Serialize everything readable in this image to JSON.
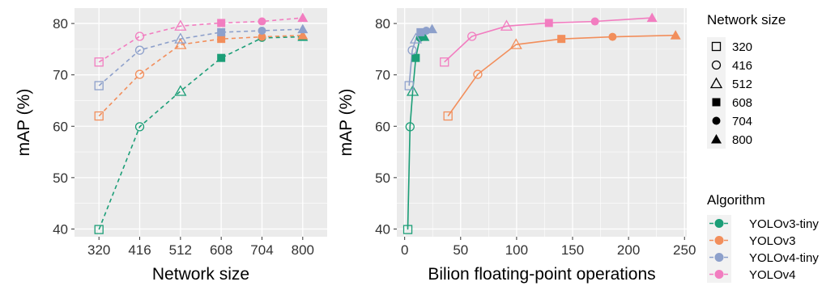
{
  "colors": {
    "panel_bg": "#EBEBEB",
    "grid": "#FFFFFF",
    "legend_key_bg": "#F2F2F2",
    "axis_text": "#333333",
    "marker_neutral": "#000000"
  },
  "legend": {
    "size_title": "Network size",
    "size_items": [
      {
        "label": "320",
        "shape": "square-open"
      },
      {
        "label": "416",
        "shape": "circle-open"
      },
      {
        "label": "512",
        "shape": "triangle-open"
      },
      {
        "label": "608",
        "shape": "square-filled"
      },
      {
        "label": "704",
        "shape": "circle-filled"
      },
      {
        "label": "800",
        "shape": "triangle-filled"
      }
    ],
    "algo_title": "Algorithm"
  },
  "chart_data": [
    {
      "type": "line",
      "xlabel": "Network size",
      "ylabel": "mAP (%)",
      "x_categories": [
        "320",
        "416",
        "512",
        "608",
        "704",
        "800"
      ],
      "ylim": [
        38.5,
        83
      ],
      "yticks": [
        40,
        50,
        60,
        70,
        80
      ],
      "grid": true,
      "line_style": "dashed",
      "series": [
        {
          "name": "YOLOv3-tiny",
          "color": "#1B9E77",
          "values": [
            39.9,
            59.9,
            66.8,
            73.3,
            77.2,
            77.4
          ]
        },
        {
          "name": "YOLOv3",
          "color": "#F28E5B",
          "values": [
            62.0,
            70.1,
            75.9,
            77.0,
            77.4,
            77.7
          ]
        },
        {
          "name": "YOLOv4-tiny",
          "color": "#8DA0CB",
          "values": [
            67.9,
            74.8,
            77.0,
            78.3,
            78.6,
            78.9
          ]
        },
        {
          "name": "YOLOv4",
          "color": "#F27DC0",
          "values": [
            72.5,
            77.5,
            79.5,
            80.1,
            80.4,
            81.1
          ]
        }
      ]
    },
    {
      "type": "line",
      "xlabel": "Bilion floating-point operations",
      "ylabel": "mAP (%)",
      "xlim": [
        -7,
        252
      ],
      "xticks": [
        0,
        50,
        100,
        150,
        200,
        250
      ],
      "ylim": [
        38.5,
        83
      ],
      "yticks": [
        40,
        50,
        60,
        70,
        80
      ],
      "grid": true,
      "line_style": "solid",
      "series": [
        {
          "name": "YOLOv3-tiny",
          "color": "#1B9E77",
          "x": [
            2.8,
            4.8,
            7.2,
            9.9,
            13.6,
            17.5
          ],
          "values": [
            39.9,
            59.9,
            66.8,
            73.3,
            77.2,
            77.4
          ]
        },
        {
          "name": "YOLOv3",
          "color": "#F28E5B",
          "x": [
            38.7,
            65.3,
            99.5,
            140.0,
            185.7,
            242.0
          ],
          "values": [
            62.0,
            70.1,
            75.9,
            77.0,
            77.4,
            77.7
          ]
        },
        {
          "name": "YOLOv4-tiny",
          "color": "#8DA0CB",
          "x": [
            4.0,
            6.8,
            10.0,
            14.2,
            19.3,
            24.5
          ],
          "values": [
            67.9,
            74.8,
            77.0,
            78.3,
            78.6,
            78.9
          ]
        },
        {
          "name": "YOLOv4",
          "color": "#F27DC0",
          "x": [
            35.5,
            60.1,
            91.0,
            128.8,
            170.0,
            221.0
          ],
          "values": [
            72.5,
            77.5,
            79.5,
            80.1,
            80.4,
            81.1
          ]
        }
      ]
    }
  ]
}
